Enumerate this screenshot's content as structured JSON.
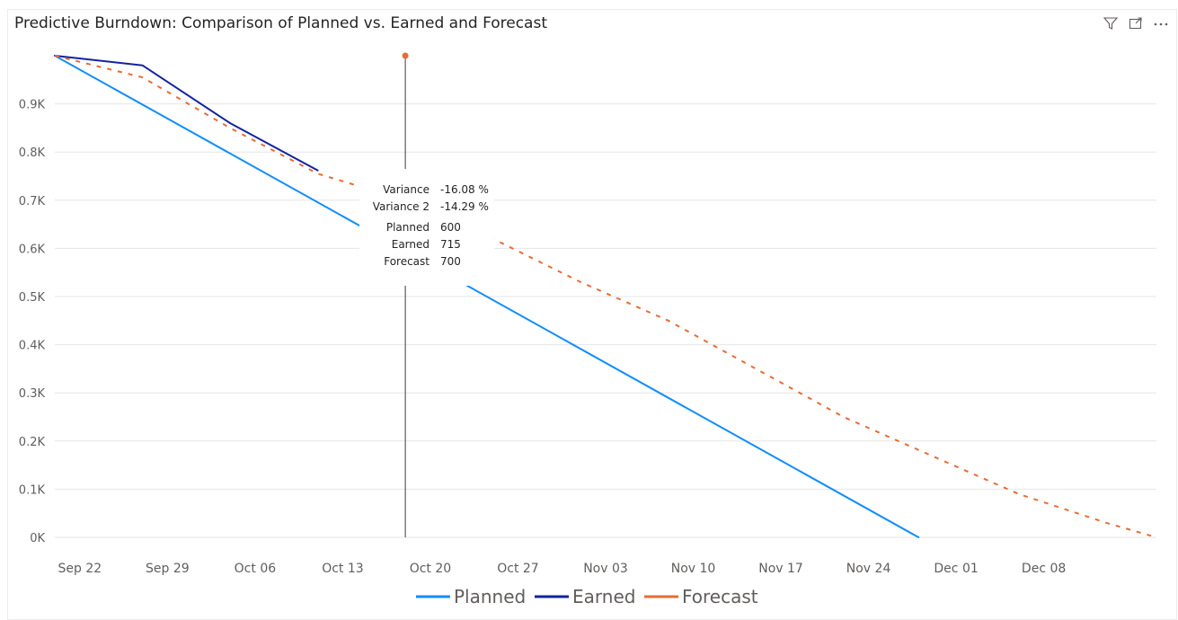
{
  "title": "Predictive Burndown: Comparison of Planned vs. Earned and Forecast",
  "icons": [
    "filter-icon",
    "focus-mode-icon",
    "more-options-icon"
  ],
  "tooltip": {
    "rows": [
      {
        "label": "Variance",
        "value": "-16.08 %"
      },
      {
        "label": "Variance 2",
        "value": "-14.29 %"
      },
      {
        "label": "Planned",
        "value": "600"
      },
      {
        "label": "Earned",
        "value": "715"
      },
      {
        "label": "Forecast",
        "value": "700"
      }
    ]
  },
  "chart_data": {
    "type": "line",
    "title": "Predictive Burndown: Comparison of Planned vs. Earned and Forecast",
    "xlabel": "",
    "ylabel": "",
    "ylim": [
      0,
      1000
    ],
    "yticks": [
      0,
      100,
      200,
      300,
      400,
      500,
      600,
      700,
      800,
      900
    ],
    "ytick_labels": [
      "0K",
      "0.1K",
      "0.2K",
      "0.3K",
      "0.4K",
      "0.5K",
      "0.6K",
      "0.7K",
      "0.8K",
      "0.9K"
    ],
    "x_tick_labels": [
      "Sep 22",
      "Sep 29",
      "Oct 06",
      "Oct 13",
      "Oct 20",
      "Oct 27",
      "Nov 03",
      "Nov 10",
      "Nov 17",
      "Nov 24",
      "Dec 01",
      "Dec 08"
    ],
    "x_range_days": [
      -2,
      86
    ],
    "x_unit": "days after Sep 22",
    "grid": true,
    "legend_position": "bottom",
    "colors": {
      "Planned": "#118dff",
      "Earned": "#12239e",
      "Forecast": "#e66c37"
    },
    "series": [
      {
        "name": "Planned",
        "style": "solid",
        "x": [
          -2,
          67
        ],
        "y": [
          1000,
          0
        ]
      },
      {
        "name": "Earned",
        "style": "solid",
        "x": [
          -2,
          5,
          12,
          19
        ],
        "y": [
          1000,
          980,
          860,
          762
        ]
      },
      {
        "name": "Forecast",
        "style": "dashed",
        "x": [
          -2,
          5,
          12,
          19,
          26,
          33,
          40,
          47,
          54,
          61,
          68,
          75,
          82,
          86
        ],
        "y": [
          1000,
          955,
          850,
          755,
          700,
          620,
          530,
          450,
          350,
          250,
          170,
          90,
          30,
          0
        ]
      }
    ],
    "hover": {
      "x": 26,
      "label": "Oct 20"
    }
  }
}
